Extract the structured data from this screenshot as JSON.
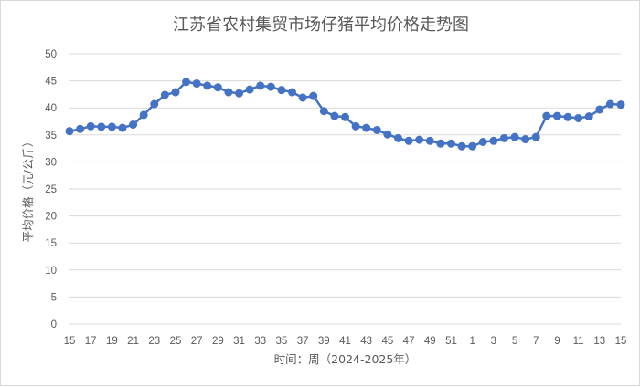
{
  "chart_data": {
    "type": "line",
    "title": "江苏省农村集贸市场仔猪平均价格走势图",
    "xlabel": "时间：周（2024-2025年）",
    "ylabel": "平均价格（元/公斤）",
    "ylim": [
      0,
      50
    ],
    "yticks": [
      0,
      5,
      10,
      15,
      20,
      25,
      30,
      35,
      40,
      45,
      50
    ],
    "grid": "horizontal",
    "legend": "none",
    "color": "#4472C4",
    "x_tick_labels": [
      "15",
      "17",
      "19",
      "21",
      "23",
      "25",
      "27",
      "29",
      "31",
      "33",
      "35",
      "37",
      "39",
      "41",
      "43",
      "45",
      "47",
      "49",
      "51",
      "1",
      "3",
      "5",
      "7",
      "9",
      "11",
      "13",
      "15"
    ],
    "x": [
      "15",
      "16",
      "17",
      "18",
      "19",
      "20",
      "21",
      "22",
      "23",
      "24",
      "25",
      "26",
      "27",
      "28",
      "29",
      "30",
      "31",
      "32",
      "33",
      "34",
      "35",
      "36",
      "37",
      "38",
      "39",
      "40",
      "41",
      "42",
      "43",
      "44",
      "45",
      "46",
      "47",
      "48",
      "49",
      "50",
      "51",
      "52",
      "1",
      "2",
      "3",
      "4",
      "5",
      "6",
      "7",
      "8",
      "9",
      "10",
      "11",
      "12",
      "13",
      "14",
      "15"
    ],
    "values": [
      35.7,
      36.1,
      36.6,
      36.5,
      36.5,
      36.3,
      36.9,
      38.7,
      40.7,
      42.4,
      42.9,
      44.8,
      44.5,
      44.1,
      43.8,
      42.9,
      42.7,
      43.4,
      44.1,
      43.9,
      43.3,
      42.9,
      41.9,
      42.2,
      39.4,
      38.5,
      38.3,
      36.6,
      36.3,
      35.9,
      35.1,
      34.4,
      33.9,
      34.1,
      33.9,
      33.4,
      33.4,
      32.9,
      32.9,
      33.7,
      33.9,
      34.4,
      34.6,
      34.2,
      34.6,
      38.5,
      38.5,
      38.3,
      38.1,
      38.4,
      39.7,
      40.7,
      40.6
    ]
  }
}
